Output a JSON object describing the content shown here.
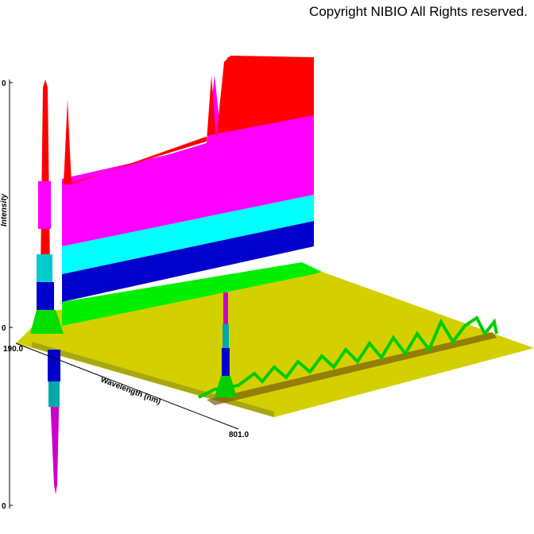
{
  "header": {
    "copyright": "Copyright NIBIO All Rights reserved."
  },
  "axes": {
    "z_label": "Intensity",
    "x_label": "Wavelength (nm)",
    "x_start": "190.0",
    "x_end": "801.0",
    "z_ticks": [
      "0",
      "0",
      "0"
    ]
  }
}
